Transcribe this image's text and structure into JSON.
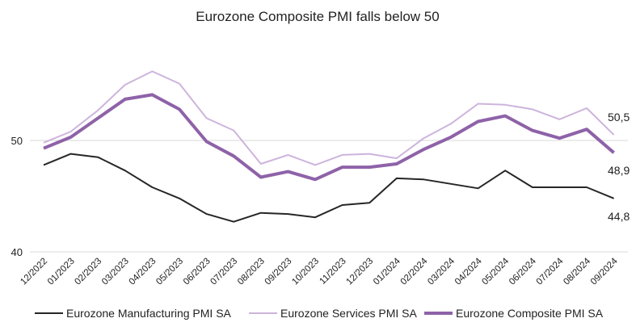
{
  "chart_data": {
    "type": "line",
    "title": "Eurozone Composite PMI falls below 50",
    "xlabel": "",
    "ylabel": "",
    "ylim": [
      40,
      60
    ],
    "yticks": [
      "40",
      "50"
    ],
    "grid": true,
    "legend_position": "bottom",
    "categories": [
      "12/2022",
      "01/2023",
      "02/2023",
      "03/2023",
      "04/2023",
      "05/2023",
      "06/2023",
      "07/2023",
      "08/2023",
      "09/2023",
      "10/2023",
      "11/2023",
      "12/2023",
      "01/2024",
      "02/2024",
      "03/2024",
      "04/2024",
      "05/2024",
      "06/2024",
      "07/2024",
      "08/2024",
      "09/2024"
    ],
    "series": [
      {
        "name": "Eurozone Manufacturing PMI SA",
        "color": "#262626",
        "width": 2,
        "values": [
          47.8,
          48.8,
          48.5,
          47.3,
          45.8,
          44.8,
          43.4,
          42.7,
          43.5,
          43.4,
          43.1,
          44.2,
          44.4,
          46.6,
          46.5,
          46.1,
          45.7,
          47.3,
          45.8,
          45.8,
          45.8,
          44.8
        ],
        "end_label": "44,8"
      },
      {
        "name": "Eurozone Services PMI SA",
        "color": "#cdb4dc",
        "width": 2,
        "values": [
          49.8,
          50.8,
          52.7,
          55.0,
          56.2,
          55.1,
          52.0,
          50.9,
          47.9,
          48.7,
          47.8,
          48.7,
          48.8,
          48.4,
          50.2,
          51.5,
          53.3,
          53.2,
          52.8,
          51.9,
          52.9,
          50.5
        ],
        "end_label": "50,5"
      },
      {
        "name": "Eurozone Composite PMI SA",
        "color": "#8e62a8",
        "width": 4,
        "values": [
          49.3,
          50.3,
          52.0,
          53.7,
          54.1,
          52.8,
          49.9,
          48.6,
          46.7,
          47.2,
          46.5,
          47.6,
          47.6,
          47.9,
          49.2,
          50.3,
          51.7,
          52.2,
          50.9,
          50.2,
          51.0,
          48.9
        ],
        "end_label": "48,9"
      }
    ]
  }
}
